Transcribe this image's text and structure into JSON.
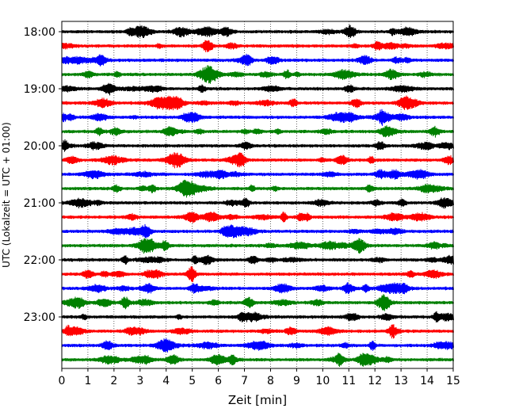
{
  "chart_data": {
    "type": "line",
    "subtype": "helicorder",
    "xlabel": "Zeit  [min]",
    "ylabel": "UTC (Lokalzeit = UTC + 01:00)",
    "xlim": [
      0,
      15
    ],
    "x_ticks": [
      0,
      1,
      2,
      3,
      4,
      5,
      6,
      7,
      8,
      9,
      10,
      11,
      12,
      13,
      14,
      15
    ],
    "trace_interval_min": 15,
    "start_time": "18:00",
    "y_ticks": [
      "18:00",
      "19:00",
      "20:00",
      "21:00",
      "22:00",
      "23:00"
    ],
    "traces": [
      "18:00",
      "18:15",
      "18:30",
      "18:45",
      "19:00",
      "19:15",
      "19:30",
      "19:45",
      "20:00",
      "20:15",
      "20:30",
      "20:45",
      "21:00",
      "21:15",
      "21:30",
      "21:45",
      "22:00",
      "22:15",
      "22:30",
      "22:45",
      "23:00",
      "23:15",
      "23:30",
      "23:45"
    ],
    "trace_colors": [
      "#000000",
      "#ff0000",
      "#0000ff",
      "#008000"
    ],
    "grid": "vertical dotted lines at each minute"
  }
}
